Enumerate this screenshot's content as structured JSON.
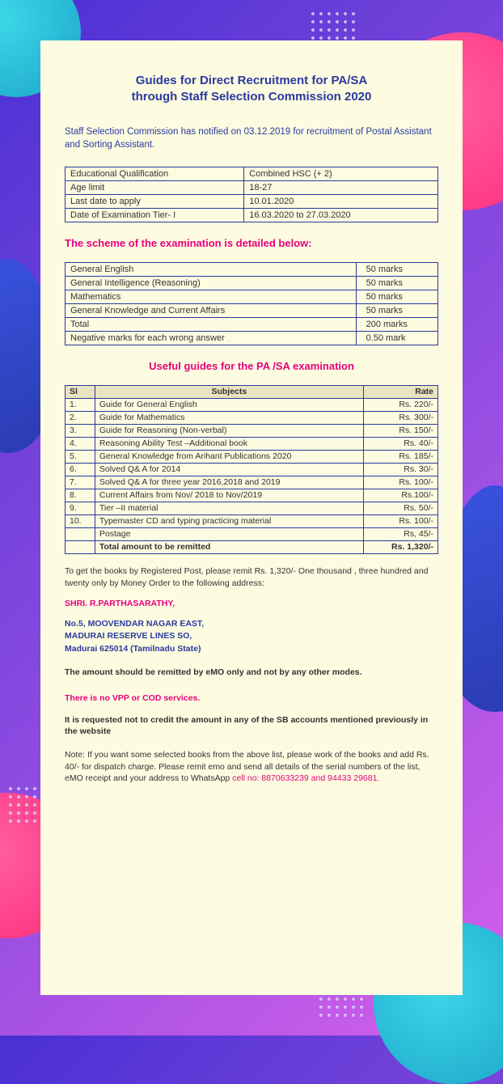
{
  "background": {
    "gradient_from": "#4a2fd4",
    "gradient_to": "#d460ea",
    "shapes": {
      "pink_circle": "#ff2d7a",
      "cyan_circle": "#1ba5c9",
      "blue_blob": "#2a3bb0",
      "dot_color": "#d8d2ff"
    }
  },
  "card_bg": "#fdfbe0",
  "colors": {
    "title": "#2a3aa0",
    "pink": "#e6007e",
    "border": "#2a3aa0",
    "text": "#333333"
  },
  "title_line1": "Guides for Direct Recruitment for PA/SA",
  "title_line2": "through Staff Selection Commission 2020",
  "intro": "Staff Selection Commission has notified on 03.12.2019 for recruitment of Postal Assistant and Sorting Assistant.",
  "info_table": {
    "rows": [
      [
        "Educational Qualification",
        "Combined HSC (+ 2)"
      ],
      [
        "Age limit",
        "18-27"
      ],
      [
        "Last date to apply",
        "10.01.2020"
      ],
      [
        "Date of Examination Tier- I",
        "16.03.2020 to 27.03.2020"
      ]
    ]
  },
  "scheme_heading": "The scheme of the examination is detailed below:",
  "scheme_table": {
    "rows": [
      [
        "General English",
        "50 marks"
      ],
      [
        "General Intelligence (Reasoning)",
        "50 marks"
      ],
      [
        "Mathematics",
        "50 marks"
      ],
      [
        "General Knowledge and Current Affairs",
        "50 marks"
      ],
      [
        "Total",
        "200 marks"
      ],
      [
        "Negative marks for each wrong answer",
        "0.50 mark"
      ]
    ]
  },
  "guides_heading": "Useful guides for the PA /SA examination",
  "guides_table": {
    "headers": [
      "Sl",
      "Subjects",
      "Rate"
    ],
    "rows": [
      [
        "1.",
        "Guide for  General English",
        "Rs. 220/-"
      ],
      [
        "2.",
        "Guide for  Mathematics",
        "Rs. 300/-"
      ],
      [
        "3.",
        "Guide for Reasoning  (Non-verbal)",
        "Rs. 150/-"
      ],
      [
        "4.",
        "Reasoning Ability Test –Additional book",
        "Rs. 40/-"
      ],
      [
        "5.",
        "General Knowledge from Arihant Publications 2020",
        "Rs. 185/-"
      ],
      [
        "6.",
        "Solved Q& A for 2014",
        "Rs. 30/-"
      ],
      [
        "7.",
        "Solved Q& A for three year 2016,2018 and 2019",
        "Rs. 100/-"
      ],
      [
        "8.",
        "Current Affairs from Nov/ 2018 to Nov/2019",
        "Rs.100/-"
      ],
      [
        "9.",
        "Tier –II material",
        "Rs. 50/-"
      ],
      [
        "10.",
        "Typemaster CD and typing practicing material",
        "Rs. 100/-"
      ],
      [
        "",
        "Postage",
        "Rs, 45/-"
      ]
    ],
    "total_row": [
      "",
      "Total amount to be remitted",
      "Rs. 1,320/-"
    ]
  },
  "post_text": "To get the books by Registered Post, please remit Rs. 1,320/- One thousand , three hundred and twenty  only by Money Order to the following address:",
  "address_name": "SHRI. R.PARTHASARATHY,",
  "address_l1": "No.5, MOOVENDAR NAGAR EAST,",
  "address_l2": "MADURAI RESERVE LINES SO,",
  "address_l3": "Madurai 625014  (Tamilnadu State)",
  "emo_note": "The amount should be remitted by eMO only and not by any other modes.",
  "vpp_note": "There is no VPP or COD services.",
  "sb_note": "It is requested not to credit the amount in any of the SB accounts mentioned previously  in the website",
  "final_note_prefix": "Note:  If you want  some selected books from the above list, please work of the books and add Rs. 40/- for dispatch charge. Please remit emo and send all details of the serial numbers of the list, eMO receipt and your address to WhatsApp  ",
  "final_note_cell": "cell no: 8870633239  and 94433 29681."
}
